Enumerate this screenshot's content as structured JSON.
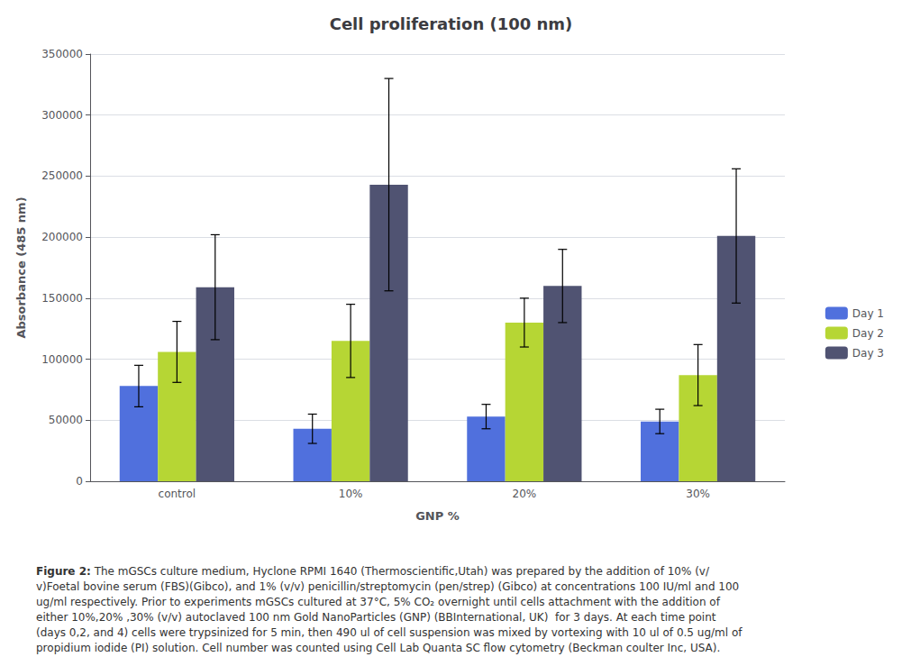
{
  "chart_data": {
    "type": "bar",
    "title": "Cell proliferation (100 nm)",
    "xlabel": "GNP %",
    "ylabel": "Absorbance (485 nm)",
    "categories": [
      "control",
      "10%",
      "20%",
      "30%"
    ],
    "series": [
      {
        "name": "Day 1",
        "values": [
          78000,
          43000,
          53000,
          49000
        ],
        "errors": [
          17000,
          12000,
          10000,
          10000
        ]
      },
      {
        "name": "Day 2",
        "values": [
          106000,
          115000,
          130000,
          87000
        ],
        "errors": [
          25000,
          30000,
          20000,
          25000
        ]
      },
      {
        "name": "Day 3",
        "values": [
          159000,
          243000,
          160000,
          201000
        ],
        "errors": [
          43000,
          87000,
          30000,
          55000
        ]
      }
    ],
    "ylim": [
      0,
      350000
    ],
    "yticks": [
      0,
      50000,
      100000,
      150000,
      200000,
      250000,
      300000,
      350000
    ],
    "grid": true,
    "legend": "right",
    "annotations": [
      {
        "label": "Figure 2:",
        "text": " The mGSCs culture medium, Hyclone RPMI 1640 (Thermoscientific,Utah) was prepared by the addition of 10% (v/\nv)Foetal bovine serum (FBS)(Gibco), and 1% (v/v) penicillin/streptomycin (pen/strep) (Gibco) at concentrations 100 IU/ml and 100\nug/ml respectively. Prior to experiments mGSCs cultured at 37°C, 5% CO₂ overnight until cells attachment with the addition of\neither 10%,20% ,30% (v/v) autoclaved 100 nm Gold NanoParticles (GNP) (BBInternational, UK)  for 3 days. At each time point\n(days 0,2, and 4) cells were trypsinized for 5 min, then 490 ul of cell suspension was mixed by vortexing with 10 ul of 0.5 ug/ml of\npropidium iodide (PI) solution. Cell number was counted using Cell Lab Quanta SC flow cytometry (Beckman coulter Inc, USA)."
      }
    ]
  }
}
